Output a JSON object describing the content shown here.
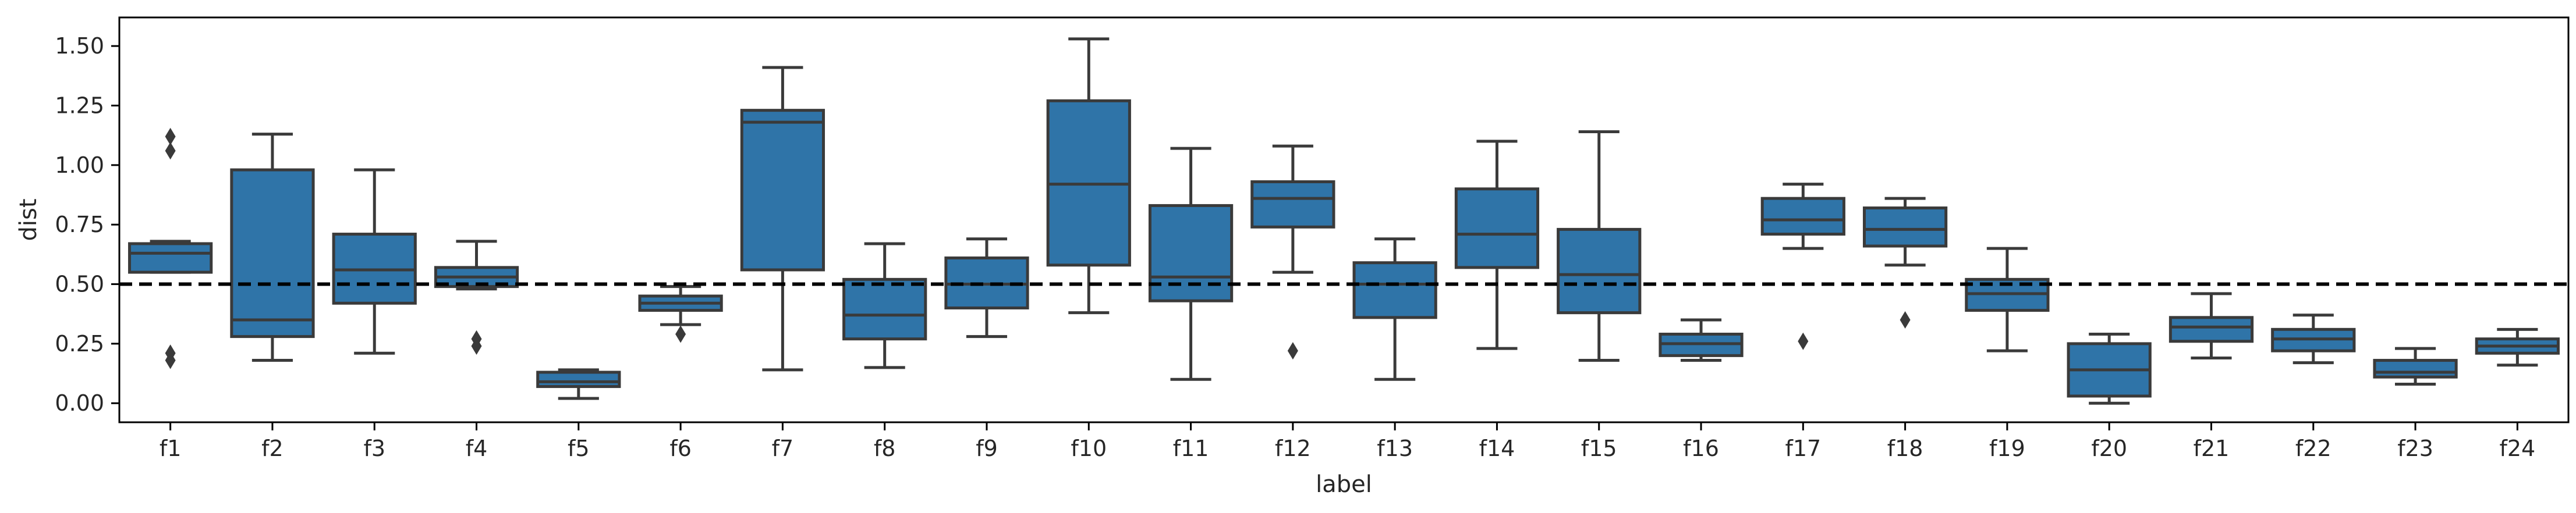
{
  "chart_data": {
    "type": "box",
    "xlabel": "label",
    "ylabel": "dist",
    "ylim": [
      -0.08,
      1.62
    ],
    "yticks": [
      0.0,
      0.25,
      0.5,
      0.75,
      1.0,
      1.25,
      1.5
    ],
    "ytick_labels": [
      "0.00",
      "0.25",
      "0.50",
      "0.75",
      "1.00",
      "1.25",
      "1.50"
    ],
    "reference_line": {
      "y": 0.5,
      "style": "dashed",
      "color": "#000000"
    },
    "box_color": "#2f74a8",
    "line_color": "#3a3a3a",
    "grid": false,
    "categories": [
      "f1",
      "f2",
      "f3",
      "f4",
      "f5",
      "f6",
      "f7",
      "f8",
      "f9",
      "f10",
      "f11",
      "f12",
      "f13",
      "f14",
      "f15",
      "f16",
      "f17",
      "f18",
      "f19",
      "f20",
      "f21",
      "f22",
      "f23",
      "f24"
    ],
    "boxes": [
      {
        "label": "f1",
        "whisker_low": 0.55,
        "q1": 0.55,
        "median": 0.63,
        "q3": 0.67,
        "whisker_high": 0.68,
        "outliers": [
          1.12,
          1.06,
          0.21,
          0.18
        ]
      },
      {
        "label": "f2",
        "whisker_low": 0.18,
        "q1": 0.28,
        "median": 0.35,
        "q3": 0.98,
        "whisker_high": 1.13,
        "outliers": []
      },
      {
        "label": "f3",
        "whisker_low": 0.21,
        "q1": 0.42,
        "median": 0.56,
        "q3": 0.71,
        "whisker_high": 0.98,
        "outliers": []
      },
      {
        "label": "f4",
        "whisker_low": 0.48,
        "q1": 0.49,
        "median": 0.53,
        "q3": 0.57,
        "whisker_high": 0.68,
        "outliers": [
          0.27,
          0.24
        ]
      },
      {
        "label": "f5",
        "whisker_low": 0.02,
        "q1": 0.07,
        "median": 0.09,
        "q3": 0.13,
        "whisker_high": 0.14,
        "outliers": []
      },
      {
        "label": "f6",
        "whisker_low": 0.33,
        "q1": 0.39,
        "median": 0.42,
        "q3": 0.45,
        "whisker_high": 0.49,
        "outliers": [
          0.29
        ]
      },
      {
        "label": "f7",
        "whisker_low": 0.14,
        "q1": 0.56,
        "median": 1.18,
        "q3": 1.23,
        "whisker_high": 1.41,
        "outliers": []
      },
      {
        "label": "f8",
        "whisker_low": 0.15,
        "q1": 0.27,
        "median": 0.37,
        "q3": 0.52,
        "whisker_high": 0.67,
        "outliers": []
      },
      {
        "label": "f9",
        "whisker_low": 0.28,
        "q1": 0.4,
        "median": 0.5,
        "q3": 0.61,
        "whisker_high": 0.69,
        "outliers": []
      },
      {
        "label": "f10",
        "whisker_low": 0.38,
        "q1": 0.58,
        "median": 0.92,
        "q3": 1.27,
        "whisker_high": 1.53,
        "outliers": []
      },
      {
        "label": "f11",
        "whisker_low": 0.1,
        "q1": 0.43,
        "median": 0.53,
        "q3": 0.83,
        "whisker_high": 1.07,
        "outliers": []
      },
      {
        "label": "f12",
        "whisker_low": 0.55,
        "q1": 0.74,
        "median": 0.86,
        "q3": 0.93,
        "whisker_high": 1.08,
        "outliers": [
          0.22
        ]
      },
      {
        "label": "f13",
        "whisker_low": 0.1,
        "q1": 0.36,
        "median": 0.5,
        "q3": 0.59,
        "whisker_high": 0.69,
        "outliers": []
      },
      {
        "label": "f14",
        "whisker_low": 0.23,
        "q1": 0.57,
        "median": 0.71,
        "q3": 0.9,
        "whisker_high": 1.1,
        "outliers": []
      },
      {
        "label": "f15",
        "whisker_low": 0.18,
        "q1": 0.38,
        "median": 0.54,
        "q3": 0.73,
        "whisker_high": 1.14,
        "outliers": []
      },
      {
        "label": "f16",
        "whisker_low": 0.18,
        "q1": 0.2,
        "median": 0.25,
        "q3": 0.29,
        "whisker_high": 0.35,
        "outliers": []
      },
      {
        "label": "f17",
        "whisker_low": 0.65,
        "q1": 0.71,
        "median": 0.77,
        "q3": 0.86,
        "whisker_high": 0.92,
        "outliers": [
          0.26
        ]
      },
      {
        "label": "f18",
        "whisker_low": 0.58,
        "q1": 0.66,
        "median": 0.73,
        "q3": 0.82,
        "whisker_high": 0.86,
        "outliers": [
          0.35
        ]
      },
      {
        "label": "f19",
        "whisker_low": 0.22,
        "q1": 0.39,
        "median": 0.46,
        "q3": 0.52,
        "whisker_high": 0.65,
        "outliers": []
      },
      {
        "label": "f20",
        "whisker_low": 0.0,
        "q1": 0.03,
        "median": 0.14,
        "q3": 0.25,
        "whisker_high": 0.29,
        "outliers": []
      },
      {
        "label": "f21",
        "whisker_low": 0.19,
        "q1": 0.26,
        "median": 0.32,
        "q3": 0.36,
        "whisker_high": 0.46,
        "outliers": []
      },
      {
        "label": "f22",
        "whisker_low": 0.17,
        "q1": 0.22,
        "median": 0.27,
        "q3": 0.31,
        "whisker_high": 0.37,
        "outliers": []
      },
      {
        "label": "f23",
        "whisker_low": 0.08,
        "q1": 0.11,
        "median": 0.13,
        "q3": 0.18,
        "whisker_high": 0.23,
        "outliers": []
      },
      {
        "label": "f24",
        "whisker_low": 0.16,
        "q1": 0.21,
        "median": 0.24,
        "q3": 0.27,
        "whisker_high": 0.31,
        "outliers": []
      }
    ]
  }
}
